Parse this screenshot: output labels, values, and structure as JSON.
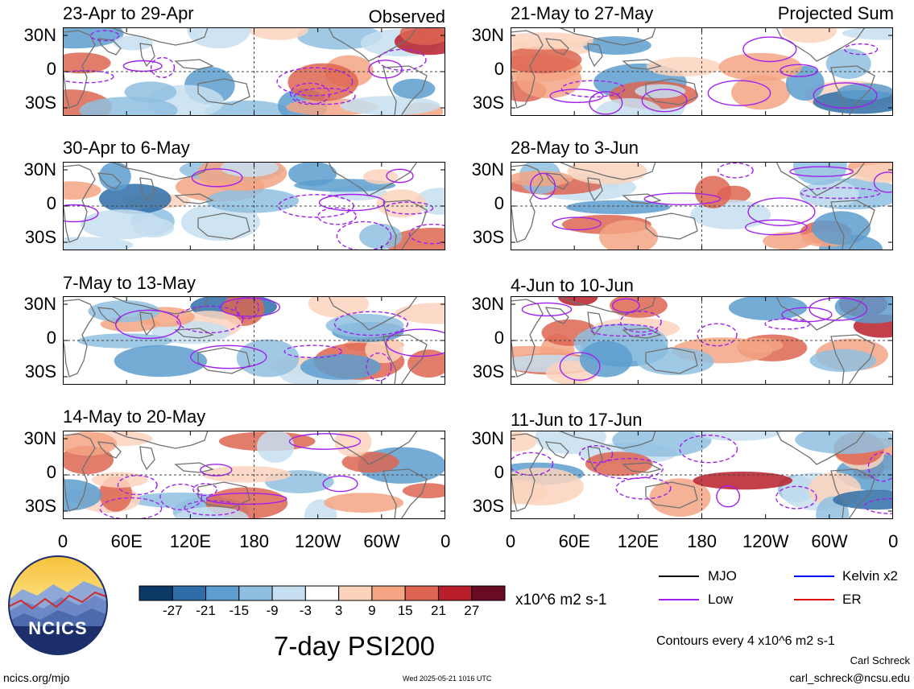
{
  "panels": [
    {
      "title": "23-Apr to 29-Apr",
      "tag": "Observed"
    },
    {
      "title": "21-May to 27-May",
      "tag": "Projected Sum"
    },
    {
      "title": "30-Apr to 6-May",
      "tag": ""
    },
    {
      "title": "28-May to 3-Jun",
      "tag": ""
    },
    {
      "title": "7-May to 13-May",
      "tag": ""
    },
    {
      "title": "4-Jun to 10-Jun",
      "tag": ""
    },
    {
      "title": "14-May to 20-May",
      "tag": ""
    },
    {
      "title": "11-Jun to 17-Jun",
      "tag": ""
    }
  ],
  "lat_labels": [
    "30N",
    "0",
    "30S"
  ],
  "lon_labels": [
    "0",
    "60E",
    "120E",
    "180",
    "120W",
    "60W",
    "0"
  ],
  "colorbar": {
    "ticks": [
      "-27",
      "-21",
      "-15",
      "-9",
      "-3",
      "3",
      "9",
      "15",
      "21",
      "27"
    ],
    "colors": [
      "#0b3a66",
      "#2e6ea8",
      "#5d9ecf",
      "#8fbfe0",
      "#c6dff0",
      "#ffffff",
      "#fbd3bd",
      "#f3a584",
      "#dd6551",
      "#b81f2a",
      "#6a0b22"
    ],
    "units": "x10^6 m2 s-1"
  },
  "legend": {
    "mjo": "MJO",
    "kelvin": "Kelvin x2",
    "low": "Low",
    "er": "ER",
    "mjo_color": "#000000",
    "kelvin_color": "#0000ff",
    "low_color": "#a020f0",
    "er_color": "#e00000"
  },
  "contour_note": "Contours every 4 x10^6 m2 s-1",
  "main_title": "7-day PSI200",
  "logo_text": "NCICS",
  "site": "ncics.org/mjo",
  "timestamp": "Wed 2025-05-21 1016 UTC",
  "author": "Carl Schreck",
  "email": "carl_schreck@ncsu.edu"
}
